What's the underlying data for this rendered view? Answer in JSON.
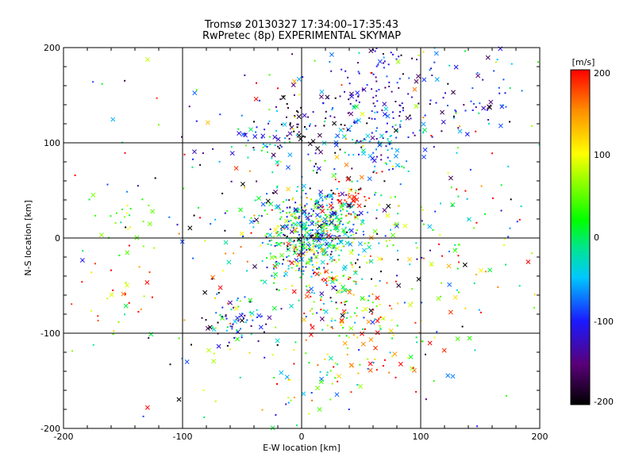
{
  "chart_data": {
    "type": "scatter",
    "title": "Tromsø 20130327 17:34:00–17:35:43",
    "subtitle": "RwPretec (8p) EXPERIMENTAL SKYMAP",
    "xlabel": "E-W location [km]",
    "ylabel": "N-S location [km]",
    "xlim": [
      -200,
      200
    ],
    "ylim": [
      -200,
      200
    ],
    "xticks": [
      "-200",
      "-100",
      "0",
      "100",
      "200"
    ],
    "yticks": [
      "-200",
      "-100",
      "0",
      "100",
      "200"
    ],
    "grid": true,
    "colorbar": {
      "unit": "[m/s]",
      "range": [
        -200,
        200
      ],
      "ticks": [
        "200",
        "100",
        "0",
        "-100",
        "-200"
      ],
      "colors": [
        "#000000",
        "#5a0078",
        "#1a1aff",
        "#00c8ff",
        "#00e68c",
        "#00ff00",
        "#ffff00",
        "#ff8c00",
        "#ff0000"
      ]
    },
    "marker_types": [
      "small-dot",
      "cross"
    ],
    "clusters": [
      {
        "x": 5,
        "y": 0,
        "spread": 22,
        "n": 420,
        "v_mean": -20,
        "v_spread": 90
      },
      {
        "x": 20,
        "y": 25,
        "spread": 20,
        "n": 160,
        "v_mean": -40,
        "v_spread": 90
      },
      {
        "x": 60,
        "y": 150,
        "spread": 28,
        "n": 140,
        "v_mean": -130,
        "v_spread": 40
      },
      {
        "x": 60,
        "y": 100,
        "spread": 25,
        "n": 90,
        "v_mean": -60,
        "v_spread": 40
      },
      {
        "x": 140,
        "y": 150,
        "spread": 25,
        "n": 50,
        "v_mean": -100,
        "v_spread": 40
      },
      {
        "x": -55,
        "y": -88,
        "spread": 14,
        "n": 60,
        "v_mean": -80,
        "v_spread": 70
      },
      {
        "x": 30,
        "y": -55,
        "spread": 22,
        "n": 110,
        "v_mean": 80,
        "v_spread": 110
      },
      {
        "x": 65,
        "y": -110,
        "spread": 25,
        "n": 60,
        "v_mean": 110,
        "v_spread": 90
      },
      {
        "x": -30,
        "y": 105,
        "spread": 15,
        "n": 40,
        "v_mean": -90,
        "v_spread": 60
      },
      {
        "x": 5,
        "y": 120,
        "spread": 18,
        "n": 50,
        "v_mean": -170,
        "v_spread": 40
      },
      {
        "x": 40,
        "y": 42,
        "spread": 8,
        "n": 30,
        "v_mean": 190,
        "v_spread": 15
      },
      {
        "x": -150,
        "y": 20,
        "spread": 15,
        "n": 20,
        "v_mean": 50,
        "v_spread": 40
      },
      {
        "x": -150,
        "y": -55,
        "spread": 20,
        "n": 25,
        "v_mean": 120,
        "v_spread": 100
      },
      {
        "x": 0,
        "y": 0,
        "spread": 110,
        "n": 450,
        "v_mean": 0,
        "v_spread": 140
      },
      {
        "x": 120,
        "y": -20,
        "spread": 40,
        "n": 60,
        "v_mean": 60,
        "v_spread": 100
      },
      {
        "x": 15,
        "y": -150,
        "spread": 20,
        "n": 30,
        "v_mean": 60,
        "v_spread": 100
      }
    ]
  }
}
